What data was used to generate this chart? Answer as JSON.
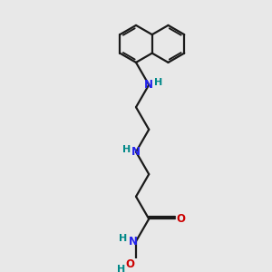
{
  "bg_color": "#e8e8e8",
  "bond_color": "#1a1a1a",
  "N_color": "#2222ee",
  "O_color": "#cc0000",
  "H_color": "#008888",
  "lw": 1.6,
  "fs": 8.5,
  "figsize": [
    3.0,
    3.0
  ],
  "dpi": 100,
  "xlim": [
    -1.5,
    5.5
  ],
  "ylim": [
    -4.5,
    5.5
  ]
}
